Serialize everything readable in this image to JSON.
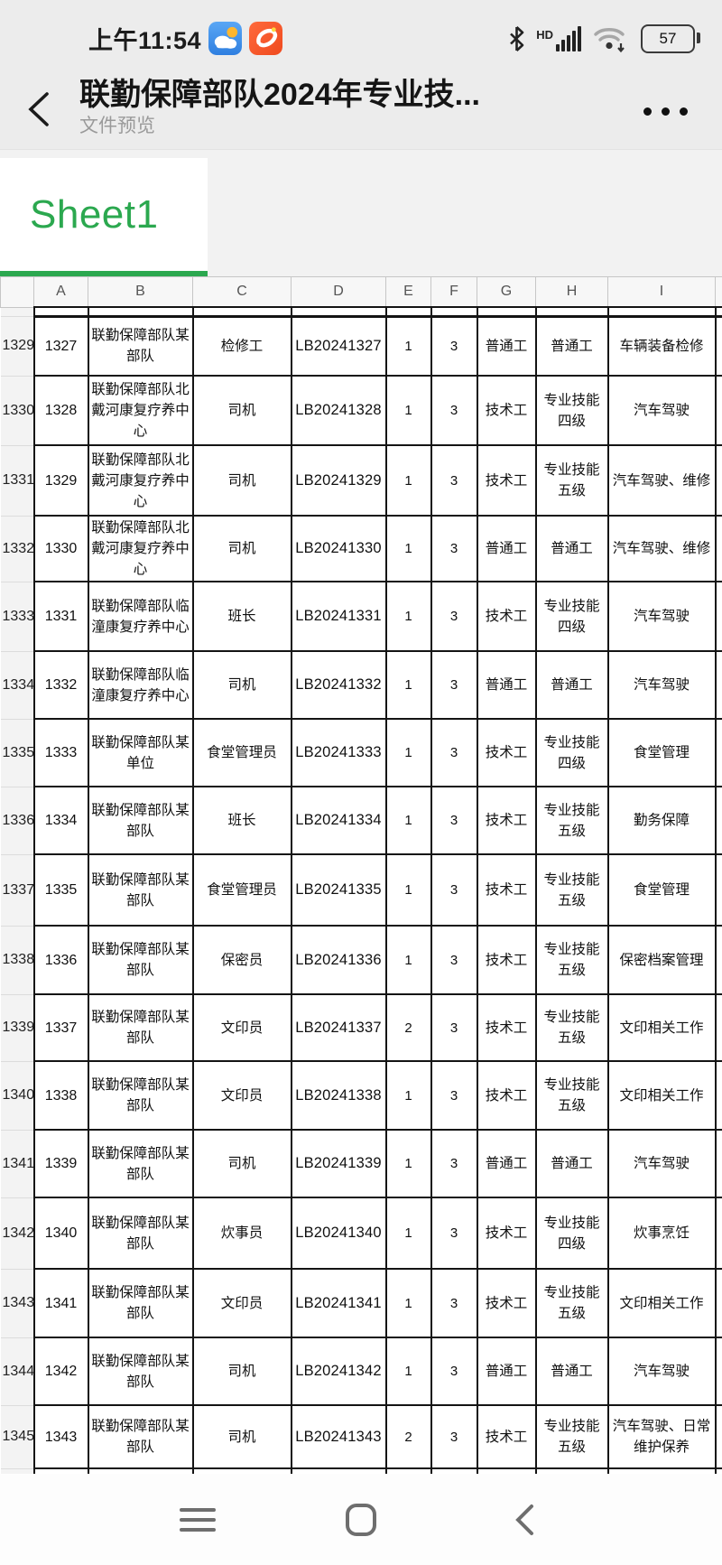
{
  "status_bar": {
    "time": "上午11:54",
    "hd_label": "HD",
    "battery_level": "57",
    "icons": [
      "weather-app-icon",
      "nav-app-icon",
      "bluetooth-icon",
      "signal-bars-icon",
      "wifi-icon",
      "battery-icon"
    ]
  },
  "header": {
    "title": "联勤保障部队2024年专业技...",
    "subtitle": "文件预览"
  },
  "sheet_tabs": {
    "active": "Sheet1"
  },
  "colors": {
    "accent_green": "#2BA84F",
    "weather_icon_blue": "#3d8fe8",
    "nav_icon_orange": "#f4562a",
    "cell_border_black": "#141414"
  },
  "table": {
    "column_letters": [
      "A",
      "B",
      "C",
      "D",
      "E",
      "F",
      "G",
      "H",
      "I"
    ],
    "rows": [
      {
        "n": "1329",
        "a": "1327",
        "b": "联勤保障部队某部队",
        "c": "检修工",
        "d": "LB20241327",
        "e": "1",
        "f": "3",
        "g": "普通工",
        "h": "普通工",
        "i": "车辆装备检修"
      },
      {
        "n": "1330",
        "a": "1328",
        "b": "联勤保障部队北戴河康复疗养中心",
        "c": "司机",
        "d": "LB20241328",
        "e": "1",
        "f": "3",
        "g": "技术工",
        "h": "专业技能四级",
        "i": "汽车驾驶"
      },
      {
        "n": "1331",
        "a": "1329",
        "b": "联勤保障部队北戴河康复疗养中心",
        "c": "司机",
        "d": "LB20241329",
        "e": "1",
        "f": "3",
        "g": "技术工",
        "h": "专业技能五级",
        "i": "汽车驾驶、维修"
      },
      {
        "n": "1332",
        "a": "1330",
        "b": "联勤保障部队北戴河康复疗养中心",
        "c": "司机",
        "d": "LB20241330",
        "e": "1",
        "f": "3",
        "g": "普通工",
        "h": "普通工",
        "i": "汽车驾驶、维修"
      },
      {
        "n": "1333",
        "a": "1331",
        "b": "联勤保障部队临潼康复疗养中心",
        "c": "班长",
        "d": "LB20241331",
        "e": "1",
        "f": "3",
        "g": "技术工",
        "h": "专业技能四级",
        "i": "汽车驾驶"
      },
      {
        "n": "1334",
        "a": "1332",
        "b": "联勤保障部队临潼康复疗养中心",
        "c": "司机",
        "d": "LB20241332",
        "e": "1",
        "f": "3",
        "g": "普通工",
        "h": "普通工",
        "i": "汽车驾驶"
      },
      {
        "n": "1335",
        "a": "1333",
        "b": "联勤保障部队某单位",
        "c": "食堂管理员",
        "d": "LB20241333",
        "e": "1",
        "f": "3",
        "g": "技术工",
        "h": "专业技能四级",
        "i": "食堂管理"
      },
      {
        "n": "1336",
        "a": "1334",
        "b": "联勤保障部队某部队",
        "c": "班长",
        "d": "LB20241334",
        "e": "1",
        "f": "3",
        "g": "技术工",
        "h": "专业技能五级",
        "i": "勤务保障"
      },
      {
        "n": "1337",
        "a": "1335",
        "b": "联勤保障部队某部队",
        "c": "食堂管理员",
        "d": "LB20241335",
        "e": "1",
        "f": "3",
        "g": "技术工",
        "h": "专业技能五级",
        "i": "食堂管理"
      },
      {
        "n": "1338",
        "a": "1336",
        "b": "联勤保障部队某部队",
        "c": "保密员",
        "d": "LB20241336",
        "e": "1",
        "f": "3",
        "g": "技术工",
        "h": "专业技能五级",
        "i": "保密档案管理"
      },
      {
        "n": "1339",
        "a": "1337",
        "b": "联勤保障部队某部队",
        "c": "文印员",
        "d": "LB20241337",
        "e": "2",
        "f": "3",
        "g": "技术工",
        "h": "专业技能五级",
        "i": "文印相关工作"
      },
      {
        "n": "1340",
        "a": "1338",
        "b": "联勤保障部队某部队",
        "c": "文印员",
        "d": "LB20241338",
        "e": "1",
        "f": "3",
        "g": "技术工",
        "h": "专业技能五级",
        "i": "文印相关工作"
      },
      {
        "n": "1341",
        "a": "1339",
        "b": "联勤保障部队某部队",
        "c": "司机",
        "d": "LB20241339",
        "e": "1",
        "f": "3",
        "g": "普通工",
        "h": "普通工",
        "i": "汽车驾驶"
      },
      {
        "n": "1342",
        "a": "1340",
        "b": "联勤保障部队某部队",
        "c": "炊事员",
        "d": "LB20241340",
        "e": "1",
        "f": "3",
        "g": "技术工",
        "h": "专业技能四级",
        "i": "炊事烹饪"
      },
      {
        "n": "1343",
        "a": "1341",
        "b": "联勤保障部队某部队",
        "c": "文印员",
        "d": "LB20241341",
        "e": "1",
        "f": "3",
        "g": "技术工",
        "h": "专业技能五级",
        "i": "文印相关工作"
      },
      {
        "n": "1344",
        "a": "1342",
        "b": "联勤保障部队某部队",
        "c": "司机",
        "d": "LB20241342",
        "e": "1",
        "f": "3",
        "g": "普通工",
        "h": "普通工",
        "i": "汽车驾驶"
      },
      {
        "n": "1345",
        "a": "1343",
        "b": "联勤保障部队某部队",
        "c": "司机",
        "d": "LB20241343",
        "e": "2",
        "f": "3",
        "g": "技术工",
        "h": "专业技能五级",
        "i": "汽车驾驶、日常维护保养"
      }
    ]
  },
  "bottom_nav": {
    "buttons": [
      "menu-icon",
      "home-icon",
      "back-icon"
    ]
  }
}
